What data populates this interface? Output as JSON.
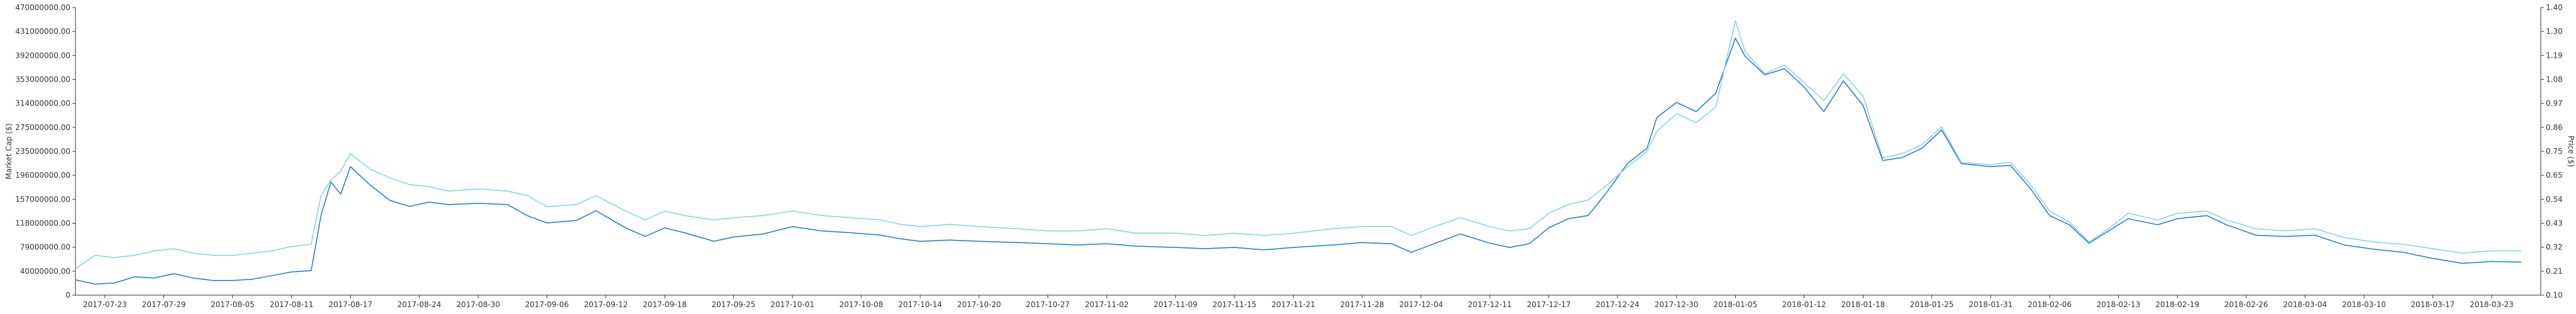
{
  "chart_data": {
    "type": "line",
    "title": "",
    "ylabel_left": "Market Cap ($)",
    "ylabel_right": "Price ($)",
    "left_ticks": [
      "0",
      "40000000.00",
      "79000000.00",
      "118000000.00",
      "157000000.00",
      "196000000.00",
      "235000000.00",
      "275000000.00",
      "314000000.00",
      "353000000.00",
      "392000000.00",
      "431000000.00",
      "470000000.00"
    ],
    "left_ylim": [
      0,
      470000000
    ],
    "right_ticks": [
      "0.10",
      "0.21",
      "0.32",
      "0.43",
      "0.54",
      "0.65",
      "0.75",
      "0.86",
      "0.97",
      "1.08",
      "1.19",
      "1.30",
      "1.40"
    ],
    "right_ylim": [
      0.1,
      1.4
    ],
    "x_ticks": [
      "2017-07-23",
      "2017-07-29",
      "2017-08-05",
      "2017-08-11",
      "2017-08-17",
      "2017-08-24",
      "2017-08-30",
      "2017-09-06",
      "2017-09-12",
      "2017-09-18",
      "2017-09-25",
      "2017-10-01",
      "2017-10-08",
      "2017-10-14",
      "2017-10-20",
      "2017-10-27",
      "2017-11-02",
      "2017-11-09",
      "2017-11-15",
      "2017-11-21",
      "2017-11-28",
      "2017-12-04",
      "2017-12-11",
      "2017-12-17",
      "2017-12-24",
      "2017-12-30",
      "2018-01-05",
      "2018-01-12",
      "2018-01-18",
      "2018-01-25",
      "2018-01-31",
      "2018-02-06",
      "2018-02-13",
      "2018-02-19",
      "2018-02-26",
      "2018-03-04",
      "2018-03-10",
      "2018-03-17",
      "2018-03-23"
    ],
    "x_start": "2017-07-20",
    "x_end": "2018-03-28",
    "grid": false,
    "legend": "none",
    "series": [
      {
        "axis": "left",
        "color": "#1f77c4",
        "points": [
          [
            "2017-07-20",
            25000000
          ],
          [
            "2017-07-22",
            18000000
          ],
          [
            "2017-07-24",
            20000000
          ],
          [
            "2017-07-26",
            30000000
          ],
          [
            "2017-07-28",
            28000000
          ],
          [
            "2017-07-30",
            35000000
          ],
          [
            "2017-08-01",
            28000000
          ],
          [
            "2017-08-03",
            24000000
          ],
          [
            "2017-08-05",
            24000000
          ],
          [
            "2017-08-07",
            26000000
          ],
          [
            "2017-08-09",
            32000000
          ],
          [
            "2017-08-11",
            38000000
          ],
          [
            "2017-08-13",
            40000000
          ],
          [
            "2017-08-14",
            130000000
          ],
          [
            "2017-08-15",
            185000000
          ],
          [
            "2017-08-16",
            165000000
          ],
          [
            "2017-08-17",
            210000000
          ],
          [
            "2017-08-19",
            180000000
          ],
          [
            "2017-08-21",
            155000000
          ],
          [
            "2017-08-23",
            145000000
          ],
          [
            "2017-08-25",
            152000000
          ],
          [
            "2017-08-27",
            148000000
          ],
          [
            "2017-08-30",
            150000000
          ],
          [
            "2017-09-02",
            148000000
          ],
          [
            "2017-09-04",
            130000000
          ],
          [
            "2017-09-06",
            118000000
          ],
          [
            "2017-09-09",
            122000000
          ],
          [
            "2017-09-11",
            138000000
          ],
          [
            "2017-09-14",
            110000000
          ],
          [
            "2017-09-16",
            96000000
          ],
          [
            "2017-09-18",
            110000000
          ],
          [
            "2017-09-20",
            102000000
          ],
          [
            "2017-09-23",
            88000000
          ],
          [
            "2017-09-25",
            95000000
          ],
          [
            "2017-09-28",
            100000000
          ],
          [
            "2017-10-01",
            112000000
          ],
          [
            "2017-10-04",
            105000000
          ],
          [
            "2017-10-07",
            102000000
          ],
          [
            "2017-10-10",
            98000000
          ],
          [
            "2017-10-12",
            92000000
          ],
          [
            "2017-10-14",
            88000000
          ],
          [
            "2017-10-17",
            90000000
          ],
          [
            "2017-10-20",
            88000000
          ],
          [
            "2017-10-24",
            86000000
          ],
          [
            "2017-10-27",
            84000000
          ],
          [
            "2017-10-30",
            82000000
          ],
          [
            "2017-11-02",
            84000000
          ],
          [
            "2017-11-05",
            80000000
          ],
          [
            "2017-11-09",
            78000000
          ],
          [
            "2017-11-12",
            76000000
          ],
          [
            "2017-11-15",
            78000000
          ],
          [
            "2017-11-18",
            74000000
          ],
          [
            "2017-11-21",
            78000000
          ],
          [
            "2017-11-25",
            82000000
          ],
          [
            "2017-11-28",
            86000000
          ],
          [
            "2017-12-01",
            84000000
          ],
          [
            "2017-12-03",
            70000000
          ],
          [
            "2017-12-06",
            88000000
          ],
          [
            "2017-12-08",
            100000000
          ],
          [
            "2017-12-11",
            85000000
          ],
          [
            "2017-12-13",
            78000000
          ],
          [
            "2017-12-15",
            84000000
          ],
          [
            "2017-12-17",
            110000000
          ],
          [
            "2017-12-19",
            125000000
          ],
          [
            "2017-12-21",
            130000000
          ],
          [
            "2017-12-23",
            170000000
          ],
          [
            "2017-12-25",
            215000000
          ],
          [
            "2017-12-27",
            240000000
          ],
          [
            "2017-12-28",
            290000000
          ],
          [
            "2017-12-30",
            315000000
          ],
          [
            "2018-01-01",
            300000000
          ],
          [
            "2018-01-03",
            330000000
          ],
          [
            "2018-01-05",
            420000000
          ],
          [
            "2018-01-06",
            390000000
          ],
          [
            "2018-01-08",
            360000000
          ],
          [
            "2018-01-10",
            370000000
          ],
          [
            "2018-01-12",
            340000000
          ],
          [
            "2018-01-14",
            300000000
          ],
          [
            "2018-01-16",
            350000000
          ],
          [
            "2018-01-18",
            310000000
          ],
          [
            "2018-01-20",
            220000000
          ],
          [
            "2018-01-22",
            225000000
          ],
          [
            "2018-01-24",
            240000000
          ],
          [
            "2018-01-26",
            270000000
          ],
          [
            "2018-01-28",
            215000000
          ],
          [
            "2018-01-31",
            210000000
          ],
          [
            "2018-02-02",
            212000000
          ],
          [
            "2018-02-04",
            175000000
          ],
          [
            "2018-02-06",
            130000000
          ],
          [
            "2018-02-08",
            115000000
          ],
          [
            "2018-02-10",
            85000000
          ],
          [
            "2018-02-12",
            105000000
          ],
          [
            "2018-02-14",
            125000000
          ],
          [
            "2018-02-17",
            115000000
          ],
          [
            "2018-02-19",
            125000000
          ],
          [
            "2018-02-22",
            130000000
          ],
          [
            "2018-02-24",
            115000000
          ],
          [
            "2018-02-27",
            98000000
          ],
          [
            "2018-03-02",
            96000000
          ],
          [
            "2018-03-05",
            98000000
          ],
          [
            "2018-03-08",
            82000000
          ],
          [
            "2018-03-11",
            75000000
          ],
          [
            "2018-03-14",
            70000000
          ],
          [
            "2018-03-17",
            60000000
          ],
          [
            "2018-03-20",
            52000000
          ],
          [
            "2018-03-23",
            55000000
          ],
          [
            "2018-03-26",
            54000000
          ]
        ]
      },
      {
        "axis": "right",
        "color": "#7fd3e0",
        "points": [
          [
            "2017-07-20",
            0.22
          ],
          [
            "2017-07-22",
            0.28
          ],
          [
            "2017-07-24",
            0.27
          ],
          [
            "2017-07-26",
            0.28
          ],
          [
            "2017-07-28",
            0.3
          ],
          [
            "2017-07-30",
            0.31
          ],
          [
            "2017-08-01",
            0.29
          ],
          [
            "2017-08-03",
            0.28
          ],
          [
            "2017-08-05",
            0.28
          ],
          [
            "2017-08-07",
            0.29
          ],
          [
            "2017-08-09",
            0.3
          ],
          [
            "2017-08-11",
            0.32
          ],
          [
            "2017-08-13",
            0.33
          ],
          [
            "2017-08-14",
            0.55
          ],
          [
            "2017-08-15",
            0.62
          ],
          [
            "2017-08-16",
            0.66
          ],
          [
            "2017-08-17",
            0.74
          ],
          [
            "2017-08-19",
            0.67
          ],
          [
            "2017-08-21",
            0.63
          ],
          [
            "2017-08-23",
            0.6
          ],
          [
            "2017-08-25",
            0.59
          ],
          [
            "2017-08-27",
            0.57
          ],
          [
            "2017-08-30",
            0.58
          ],
          [
            "2017-09-02",
            0.57
          ],
          [
            "2017-09-04",
            0.55
          ],
          [
            "2017-09-06",
            0.5
          ],
          [
            "2017-09-09",
            0.51
          ],
          [
            "2017-09-11",
            0.55
          ],
          [
            "2017-09-14",
            0.48
          ],
          [
            "2017-09-16",
            0.44
          ],
          [
            "2017-09-18",
            0.48
          ],
          [
            "2017-09-20",
            0.46
          ],
          [
            "2017-09-23",
            0.44
          ],
          [
            "2017-09-25",
            0.45
          ],
          [
            "2017-09-28",
            0.46
          ],
          [
            "2017-10-01",
            0.48
          ],
          [
            "2017-10-04",
            0.46
          ],
          [
            "2017-10-07",
            0.45
          ],
          [
            "2017-10-10",
            0.44
          ],
          [
            "2017-10-12",
            0.42
          ],
          [
            "2017-10-14",
            0.41
          ],
          [
            "2017-10-17",
            0.42
          ],
          [
            "2017-10-20",
            0.41
          ],
          [
            "2017-10-24",
            0.4
          ],
          [
            "2017-10-27",
            0.39
          ],
          [
            "2017-10-30",
            0.39
          ],
          [
            "2017-11-02",
            0.4
          ],
          [
            "2017-11-05",
            0.38
          ],
          [
            "2017-11-09",
            0.38
          ],
          [
            "2017-11-12",
            0.37
          ],
          [
            "2017-11-15",
            0.38
          ],
          [
            "2017-11-18",
            0.37
          ],
          [
            "2017-11-21",
            0.38
          ],
          [
            "2017-11-25",
            0.4
          ],
          [
            "2017-11-28",
            0.41
          ],
          [
            "2017-12-01",
            0.41
          ],
          [
            "2017-12-03",
            0.37
          ],
          [
            "2017-12-06",
            0.42
          ],
          [
            "2017-12-08",
            0.45
          ],
          [
            "2017-12-11",
            0.41
          ],
          [
            "2017-12-13",
            0.39
          ],
          [
            "2017-12-15",
            0.4
          ],
          [
            "2017-12-17",
            0.47
          ],
          [
            "2017-12-19",
            0.51
          ],
          [
            "2017-12-21",
            0.53
          ],
          [
            "2017-12-23",
            0.6
          ],
          [
            "2017-12-25",
            0.68
          ],
          [
            "2017-12-27",
            0.75
          ],
          [
            "2017-12-28",
            0.84
          ],
          [
            "2017-12-30",
            0.92
          ],
          [
            "2018-01-01",
            0.88
          ],
          [
            "2018-01-03",
            0.95
          ],
          [
            "2018-01-05",
            1.34
          ],
          [
            "2018-01-06",
            1.2
          ],
          [
            "2018-01-08",
            1.1
          ],
          [
            "2018-01-10",
            1.14
          ],
          [
            "2018-01-12",
            1.06
          ],
          [
            "2018-01-14",
            0.98
          ],
          [
            "2018-01-16",
            1.1
          ],
          [
            "2018-01-18",
            1.0
          ],
          [
            "2018-01-20",
            0.72
          ],
          [
            "2018-01-22",
            0.74
          ],
          [
            "2018-01-24",
            0.78
          ],
          [
            "2018-01-26",
            0.86
          ],
          [
            "2018-01-28",
            0.7
          ],
          [
            "2018-01-31",
            0.69
          ],
          [
            "2018-02-02",
            0.7
          ],
          [
            "2018-02-04",
            0.6
          ],
          [
            "2018-02-06",
            0.48
          ],
          [
            "2018-02-08",
            0.43
          ],
          [
            "2018-02-10",
            0.34
          ],
          [
            "2018-02-12",
            0.4
          ],
          [
            "2018-02-14",
            0.47
          ],
          [
            "2018-02-17",
            0.44
          ],
          [
            "2018-02-19",
            0.47
          ],
          [
            "2018-02-22",
            0.48
          ],
          [
            "2018-02-24",
            0.44
          ],
          [
            "2018-02-27",
            0.4
          ],
          [
            "2018-03-02",
            0.39
          ],
          [
            "2018-03-05",
            0.4
          ],
          [
            "2018-03-08",
            0.36
          ],
          [
            "2018-03-11",
            0.34
          ],
          [
            "2018-03-14",
            0.33
          ],
          [
            "2018-03-17",
            0.31
          ],
          [
            "2018-03-20",
            0.29
          ],
          [
            "2018-03-23",
            0.3
          ],
          [
            "2018-03-26",
            0.3
          ]
        ]
      }
    ]
  }
}
